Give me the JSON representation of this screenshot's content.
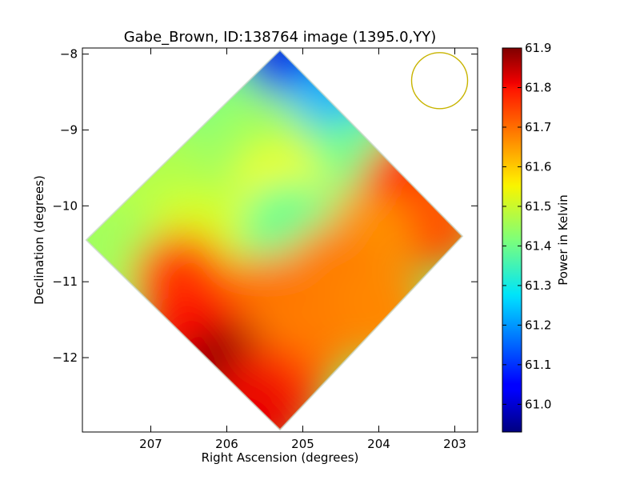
{
  "chart_data": {
    "type": "heatmap",
    "title": "Gabe_Brown, ID:138764 image (1395.0,YY)",
    "xlabel": "Right Ascension (degrees)",
    "ylabel": "Declination (degrees)",
    "xlim": [
      207.9,
      202.7
    ],
    "ylim": [
      -12.98,
      -7.92
    ],
    "x_ticks": [
      207,
      206,
      205,
      204,
      203
    ],
    "x_tick_labels": [
      "207",
      "206",
      "205",
      "204",
      "203"
    ],
    "y_ticks": [
      -8,
      -9,
      -10,
      -11,
      -12
    ],
    "y_tick_labels": [
      "−8",
      "−9",
      "−10",
      "−11",
      "−12"
    ],
    "colorbar": {
      "label": "Power in Kelvin",
      "colormap": "jet",
      "range": [
        60.93,
        61.9
      ],
      "ticks": [
        61.0,
        61.1,
        61.2,
        61.3,
        61.4,
        61.5,
        61.6,
        61.7,
        61.8,
        61.9
      ],
      "tick_labels": [
        "61.0",
        "61.1",
        "61.2",
        "61.3",
        "61.4",
        "61.5",
        "61.6",
        "61.7",
        "61.8",
        "61.9"
      ]
    },
    "footprint": {
      "shape": "diamond",
      "vertices_ra_dec": [
        [
          205.3,
          -7.95
        ],
        [
          202.9,
          -10.4
        ],
        [
          205.3,
          -12.95
        ],
        [
          207.85,
          -10.45
        ]
      ]
    },
    "regions": [
      {
        "ra": 205.2,
        "dec": -8.25,
        "value": 61.03
      },
      {
        "ra": 204.7,
        "dec": -8.8,
        "value": 61.22
      },
      {
        "ra": 206.0,
        "dec": -8.9,
        "value": 61.42
      },
      {
        "ra": 205.5,
        "dec": -9.2,
        "value": 61.45
      },
      {
        "ra": 204.3,
        "dec": -9.45,
        "value": 61.4
      },
      {
        "ra": 206.8,
        "dec": -9.6,
        "value": 61.46
      },
      {
        "ra": 207.4,
        "dec": -10.1,
        "value": 61.47
      },
      {
        "ra": 205.3,
        "dec": -9.85,
        "value": 61.53
      },
      {
        "ra": 203.6,
        "dec": -9.75,
        "value": 61.76
      },
      {
        "ra": 203.3,
        "dec": -10.2,
        "value": 61.7
      },
      {
        "ra": 204.2,
        "dec": -10.45,
        "value": 61.64
      },
      {
        "ra": 205.2,
        "dec": -10.3,
        "value": 61.4
      },
      {
        "ra": 206.4,
        "dec": -10.4,
        "value": 61.5
      },
      {
        "ra": 207.5,
        "dec": -10.6,
        "value": 61.45
      },
      {
        "ra": 204.6,
        "dec": -10.9,
        "value": 61.66
      },
      {
        "ra": 206.6,
        "dec": -11.0,
        "value": 61.72
      },
      {
        "ra": 205.5,
        "dec": -11.3,
        "value": 61.67
      },
      {
        "ra": 204.0,
        "dec": -11.4,
        "value": 61.65
      },
      {
        "ra": 206.4,
        "dec": -11.7,
        "value": 61.77
      },
      {
        "ra": 205.0,
        "dec": -11.8,
        "value": 61.66
      },
      {
        "ra": 206.0,
        "dec": -12.2,
        "value": 61.88
      },
      {
        "ra": 205.4,
        "dec": -12.5,
        "value": 61.73
      },
      {
        "ra": 205.7,
        "dec": -12.8,
        "value": 61.8
      }
    ],
    "beam_marker": {
      "shape": "circle",
      "ra": 203.2,
      "dec": -8.35,
      "color": "#c8b400"
    },
    "grid": false
  }
}
